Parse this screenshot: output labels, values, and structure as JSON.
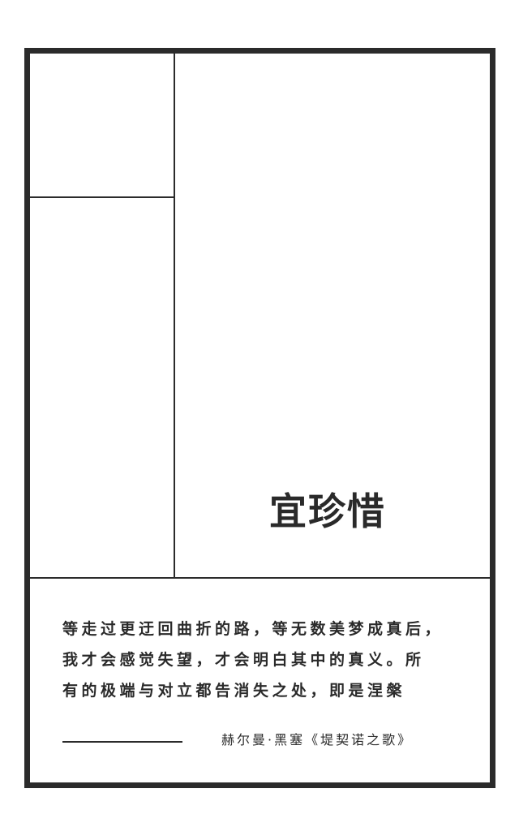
{
  "card": {
    "title": "宜珍惜",
    "quote_lines": [
      "等走过更迂回曲折的路，等无数美梦成真后，",
      "我才会感觉失望，才会明白其中的真义。所",
      "有的极端与对立都告消失之处，即是涅槃"
    ],
    "attribution": "赫尔曼·黑塞《堤契诺之歌》"
  },
  "colors": {
    "border": "#2b2b2b",
    "text": "#2a2a2a",
    "background": "#ffffff"
  }
}
